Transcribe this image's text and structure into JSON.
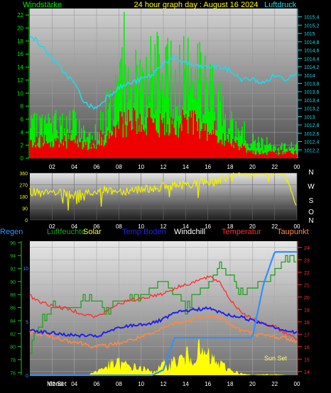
{
  "chart_data": [
    {
      "type": "bar",
      "title": "24 hour graph day : August 16 2024",
      "ylabel_left": "Windstärke",
      "ylabel_right": "Luftdruck",
      "x_ticks": [
        "02",
        "04",
        "06",
        "08",
        "10",
        "12",
        "14",
        "16",
        "18",
        "20",
        "22",
        "00"
      ],
      "y_left_ticks": [
        "0",
        "2",
        "4",
        "6",
        "8",
        "10",
        "12",
        "14",
        "16",
        "18",
        "20",
        "22"
      ],
      "ylim_left": [
        0,
        23
      ],
      "y_right_ticks": [
        "1012,2",
        "1012,4",
        "1012,6",
        "1012,8",
        "1013",
        "1013,2",
        "1013,4",
        "1013,6",
        "1013,8",
        "1014",
        "1014,2",
        "1014,4",
        "1014,6",
        "1014,8",
        "1015",
        "1015,2",
        "1015,4"
      ],
      "ylim_right": [
        1012.0,
        1015.6
      ],
      "colors": {
        "gust": "#00ee00",
        "wind": "#ee0000",
        "pressure": "#22d8e8"
      },
      "series": [
        {
          "key": "gust",
          "hours": [
            0,
            1,
            2,
            3,
            4,
            5,
            6,
            7,
            8,
            9,
            10,
            11,
            12,
            13,
            14,
            15,
            16,
            17,
            18,
            19,
            20,
            21,
            22,
            23,
            24
          ],
          "values": [
            5,
            6,
            6,
            6,
            6,
            4,
            5,
            9,
            12,
            13,
            14,
            15,
            15,
            14,
            15,
            15,
            12,
            11,
            6,
            4,
            3,
            3,
            2,
            2,
            3
          ]
        },
        {
          "key": "wind",
          "hours": [
            0,
            1,
            2,
            3,
            4,
            5,
            6,
            7,
            8,
            9,
            10,
            11,
            12,
            13,
            14,
            15,
            16,
            17,
            18,
            19,
            20,
            21,
            22,
            23,
            24
          ],
          "values": [
            3,
            3,
            3,
            3,
            3,
            2,
            3,
            4,
            6,
            6,
            6,
            6,
            6,
            6,
            6,
            6,
            5,
            4,
            3,
            2,
            1,
            1,
            1,
            1,
            1
          ]
        },
        {
          "key": "pressure",
          "hours": [
            0,
            1,
            2,
            3,
            4,
            5,
            6,
            7,
            8,
            9,
            10,
            11,
            12,
            13,
            14,
            15,
            16,
            17,
            18,
            19,
            20,
            21,
            22,
            23,
            24
          ],
          "values": [
            1015.0,
            1014.7,
            1014.4,
            1014.1,
            1013.8,
            1013.3,
            1013.2,
            1013.5,
            1013.7,
            1013.8,
            1013.9,
            1014.0,
            1014.3,
            1014.4,
            1014.3,
            1014.2,
            1014.2,
            1014.2,
            1014.1,
            1013.9,
            1013.9,
            1013.8,
            1014.0,
            1013.9,
            1014.1
          ]
        }
      ]
    },
    {
      "type": "line",
      "x_ticks": [
        "02",
        "04",
        "06",
        "08",
        "10",
        "12",
        "14",
        "16",
        "18",
        "20",
        "22",
        "00"
      ],
      "y_ticks": [
        "0",
        "90",
        "180",
        "270",
        "360"
      ],
      "ylim": [
        0,
        360
      ],
      "direction_labels": [
        "N",
        "W",
        "S",
        "O",
        "N"
      ],
      "colors": {
        "direction": "#f0f000"
      },
      "series": [
        {
          "key": "direction",
          "hours": [
            0,
            1,
            2,
            3,
            4,
            5,
            6,
            7,
            8,
            9,
            10,
            11,
            12,
            13,
            14,
            15,
            16,
            17,
            18,
            19,
            20,
            21,
            22,
            23,
            24
          ],
          "values": [
            220,
            200,
            210,
            200,
            190,
            210,
            220,
            230,
            220,
            230,
            240,
            245,
            255,
            265,
            275,
            285,
            295,
            310,
            330,
            345,
            350,
            350,
            345,
            350,
            90
          ]
        }
      ]
    },
    {
      "type": "line",
      "legend": [
        "Regen",
        "Luftfeuchte",
        "Solar",
        "Temp Boden",
        "Windchill",
        "Temperatur",
        "Taupunkt"
      ],
      "x_ticks": [
        "02",
        "04",
        "06",
        "08",
        "10",
        "12",
        "14",
        "16",
        "18",
        "20",
        "22",
        "00"
      ],
      "y_humidity_ticks": [
        "76",
        "78",
        "80",
        "82",
        "84",
        "86",
        "88",
        "90",
        "92",
        "94",
        "96"
      ],
      "ylim_humidity": [
        75.6,
        96.2
      ],
      "y_rain_ticks": [
        "0",
        "5",
        "10"
      ],
      "ylim_rain": [
        0,
        12.5
      ],
      "y_temp_ticks": [
        "14",
        "15",
        "16",
        "17",
        "18",
        "19",
        "20",
        "21",
        "22",
        "23",
        "24"
      ],
      "ylim_temp": [
        13.7,
        24.5
      ],
      "annotations": [
        "Mond",
        "Set",
        "Sun Set"
      ],
      "colors": {
        "Regen": "#3090ff",
        "Luftfeuchte": "#20a020",
        "Solar": "#ffff00",
        "Temp Boden": "#2222ee",
        "Windchill": "#ffffff",
        "Temperatur": "#ff3030",
        "Taupunkt": "#ff8844"
      },
      "series": [
        {
          "name": "Temperatur",
          "hours": [
            0,
            1,
            2,
            3,
            4,
            5,
            6,
            7,
            8,
            9,
            10,
            11,
            12,
            13,
            14,
            15,
            16,
            17,
            18,
            19,
            20,
            21,
            22,
            23,
            24
          ],
          "values": [
            20.1,
            19.6,
            19.3,
            19.1,
            18.9,
            18.6,
            18.4,
            18.9,
            19.5,
            19.7,
            19.9,
            20.1,
            20.3,
            20.7,
            21.0,
            21.3,
            21.6,
            21.3,
            19.8,
            18.8,
            18.3,
            17.8,
            17.6,
            17.1,
            16.6
          ]
        },
        {
          "name": "Temp Boden",
          "hours": [
            0,
            1,
            2,
            3,
            4,
            5,
            6,
            7,
            8,
            9,
            10,
            11,
            12,
            13,
            14,
            15,
            16,
            17,
            18,
            19,
            20,
            21,
            22,
            23,
            24
          ],
          "values": [
            17.4,
            17.2,
            17.1,
            17.0,
            16.9,
            16.9,
            16.8,
            17.2,
            17.5,
            17.7,
            17.8,
            17.9,
            18.2,
            18.7,
            18.9,
            19.0,
            19.1,
            18.8,
            18.5,
            18.4,
            18.1,
            17.9,
            17.6,
            17.3,
            17.1
          ]
        },
        {
          "name": "Taupunkt",
          "hours": [
            0,
            1,
            2,
            3,
            4,
            5,
            6,
            7,
            8,
            9,
            10,
            11,
            12,
            13,
            14,
            15,
            16,
            17,
            18,
            19,
            20,
            21,
            22,
            23,
            24
          ],
          "values": [
            17.2,
            17.0,
            16.8,
            16.6,
            16.4,
            16.2,
            16.0,
            16.1,
            16.3,
            16.5,
            16.8,
            17.0,
            17.5,
            17.9,
            18.0,
            18.4,
            18.5,
            18.4,
            17.8,
            17.3,
            17.1,
            16.9,
            16.8,
            16.7,
            16.4
          ]
        },
        {
          "name": "Luftfeuchte",
          "hours": [
            0,
            1,
            2,
            3,
            4,
            5,
            6,
            7,
            8,
            9,
            10,
            11,
            12,
            13,
            14,
            15,
            16,
            17,
            18,
            19,
            20,
            21,
            22,
            23,
            24
          ],
          "values": [
            80.0,
            84.0,
            86.5,
            86.0,
            86.5,
            87.5,
            87.0,
            85.5,
            87.0,
            87.0,
            88.0,
            89.0,
            90.0,
            88.5,
            86.0,
            88.0,
            89.5,
            92.0,
            91.0,
            88.0,
            89.0,
            90.0,
            91.0,
            93.5,
            93.5
          ]
        },
        {
          "name": "Regen",
          "hours": [
            0,
            1,
            2,
            3,
            4,
            5,
            6,
            7,
            8,
            9,
            10,
            11,
            12,
            13,
            14,
            15,
            16,
            17,
            18,
            19,
            20,
            21,
            22,
            23,
            24
          ],
          "values": [
            0,
            0,
            0,
            0,
            0,
            0,
            0,
            0,
            0,
            0,
            0,
            0,
            0.5,
            3.5,
            3.5,
            3.5,
            3.5,
            3.5,
            3.5,
            3.5,
            3.5,
            8.5,
            11.5,
            11.5,
            11.5
          ]
        },
        {
          "name": "Solar",
          "hours": [
            0,
            1,
            2,
            3,
            4,
            5,
            6,
            7,
            8,
            9,
            10,
            11,
            12,
            13,
            14,
            15,
            16,
            17,
            18,
            19,
            20,
            21,
            22,
            23,
            24
          ],
          "values": [
            0,
            0,
            0,
            0,
            0,
            0,
            0.5,
            1.2,
            1.5,
            1.1,
            0.9,
            0.4,
            1.2,
            1.7,
            2.2,
            3.0,
            2.3,
            1.4,
            0.7,
            0.2,
            0,
            0.1,
            0.1,
            0,
            0
          ]
        }
      ]
    }
  ]
}
